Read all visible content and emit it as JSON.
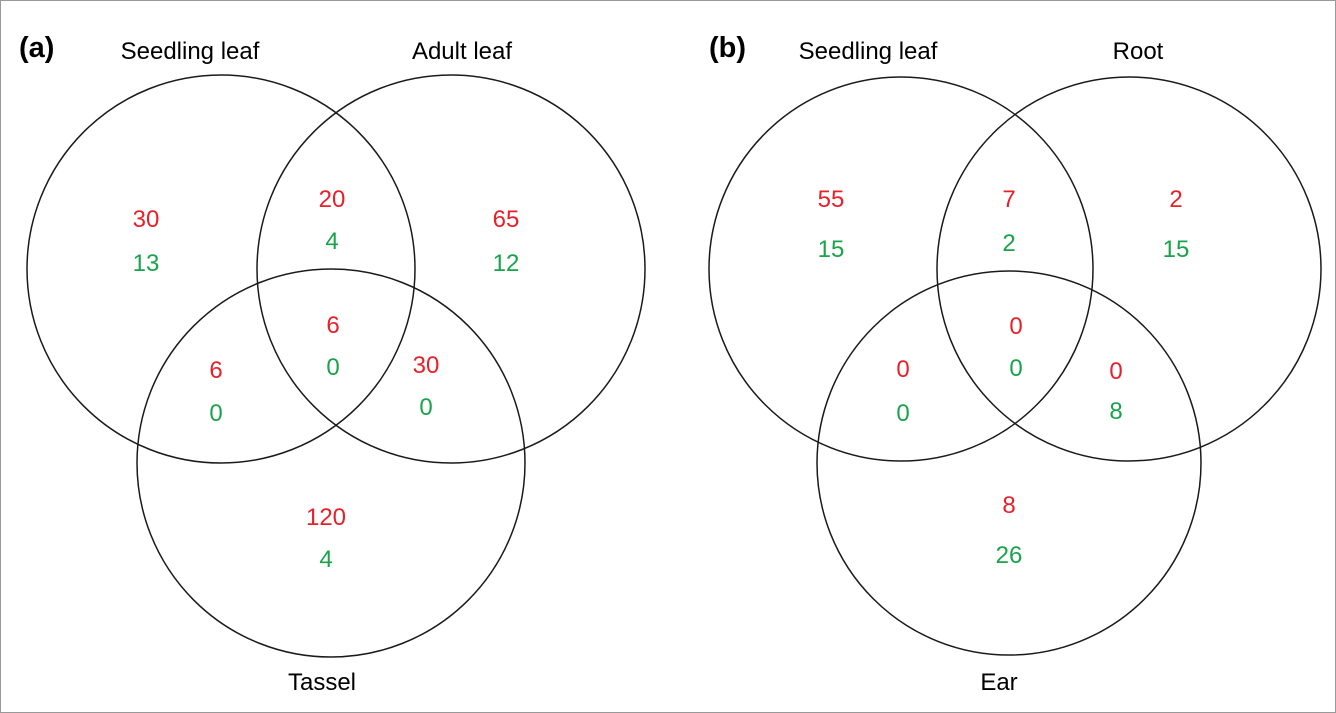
{
  "colors": {
    "up": "#e8202a",
    "down": "#19a34a",
    "outline": "#1a1a1a"
  },
  "panels": [
    {
      "label": "(a)",
      "sets": [
        "Seedling leaf",
        "Adult leaf",
        "Tassel"
      ],
      "regions": {
        "only_1": {
          "up": "30",
          "down": "13"
        },
        "only_2": {
          "up": "65",
          "down": "12"
        },
        "only_3": {
          "up": "120",
          "down": "4"
        },
        "r12": {
          "up": "20",
          "down": "4"
        },
        "r13": {
          "up": "6",
          "down": "0"
        },
        "r23": {
          "up": "30",
          "down": "0"
        },
        "r123": {
          "up": "6",
          "down": "0"
        }
      }
    },
    {
      "label": "(b)",
      "sets": [
        "Seedling leaf",
        "Root",
        "Ear"
      ],
      "regions": {
        "only_1": {
          "up": "55",
          "down": "15"
        },
        "only_2": {
          "up": "2",
          "down": "15"
        },
        "only_3": {
          "up": "8",
          "down": "26"
        },
        "r12": {
          "up": "7",
          "down": "2"
        },
        "r13": {
          "up": "0",
          "down": "0"
        },
        "r23": {
          "up": "0",
          "down": "8"
        },
        "r123": {
          "up": "0",
          "down": "0"
        }
      }
    }
  ]
}
